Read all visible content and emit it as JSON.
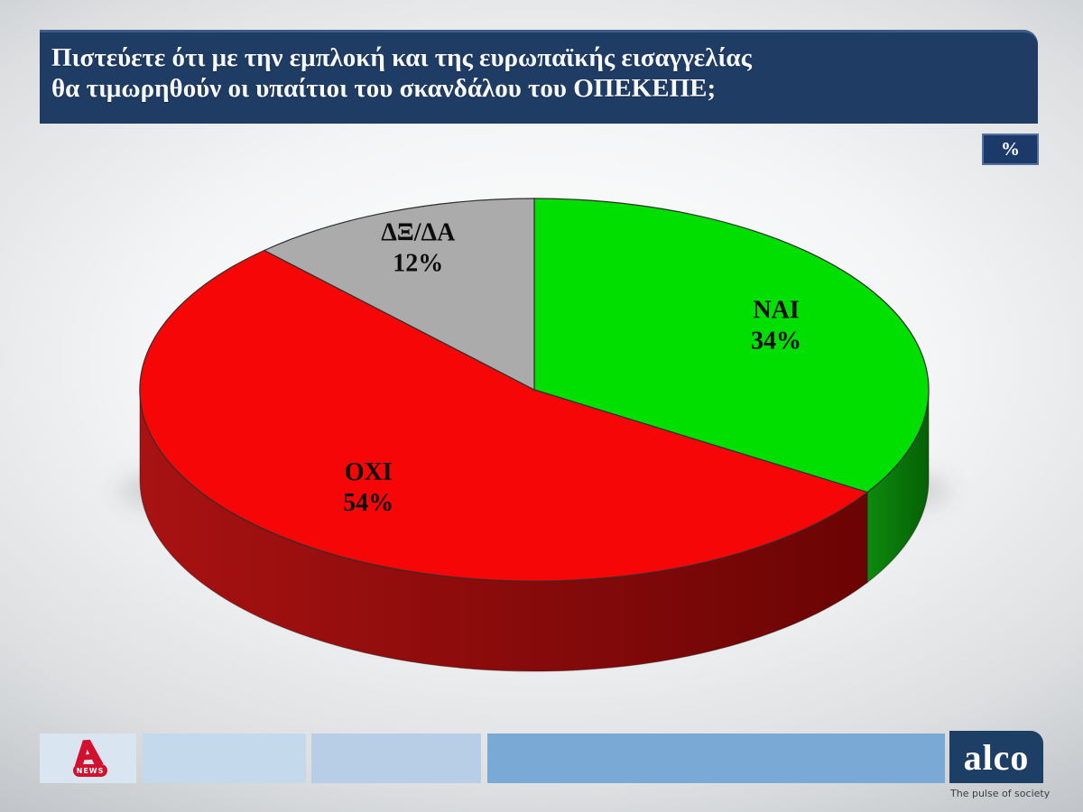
{
  "slide": {
    "question_line1": "Πιστεύετε ότι με την εμπλοκή και της ευρωπαϊκής εισαγγελίας",
    "question_line2": "θα τιμωρηθούν οι υπαίτιοι του σκανδάλου του ΟΠΕΚΕΠΕ;",
    "unit_badge": "%"
  },
  "chart_data": {
    "type": "pie",
    "style": "3d",
    "title": "Πιστεύετε ότι με την εμπλοκή και της ευρωπαϊκής εισαγγελίας θα τιμωρηθούν οι υπαίτιοι του σκανδάλου του ΟΠΕΚΕΠΕ;",
    "unit": "%",
    "labels": [
      "ΝΑΙ",
      "ΟΧΙ",
      "ΔΞ/ΔΑ"
    ],
    "values": [
      34,
      54,
      12
    ],
    "colors": [
      "#00df00",
      "#f60606",
      "#ababab"
    ],
    "side_colors": [
      [
        "#0d8a0d",
        "#056005"
      ],
      [
        "#a81212",
        "#6b0404"
      ],
      [
        "#9a9a9a",
        "#8d8d8d"
      ]
    ],
    "label_color": "#0c0c0c",
    "start_angle_deg": 0,
    "direction": "clockwise",
    "legend": "none",
    "label_radius_fractions": [
      0.7,
      0.66,
      0.8
    ]
  },
  "footer": {
    "bars": [
      "#d9e6f2",
      "#c5d9ec",
      "#b7cee6",
      "#7aa9d6"
    ],
    "alpha_news": {
      "news_label": "NEWS",
      "brand_color": "#d2112e"
    },
    "alco": {
      "name": "alco",
      "tagline": "The pulse of society",
      "brand_color": "#1d3f66"
    }
  }
}
